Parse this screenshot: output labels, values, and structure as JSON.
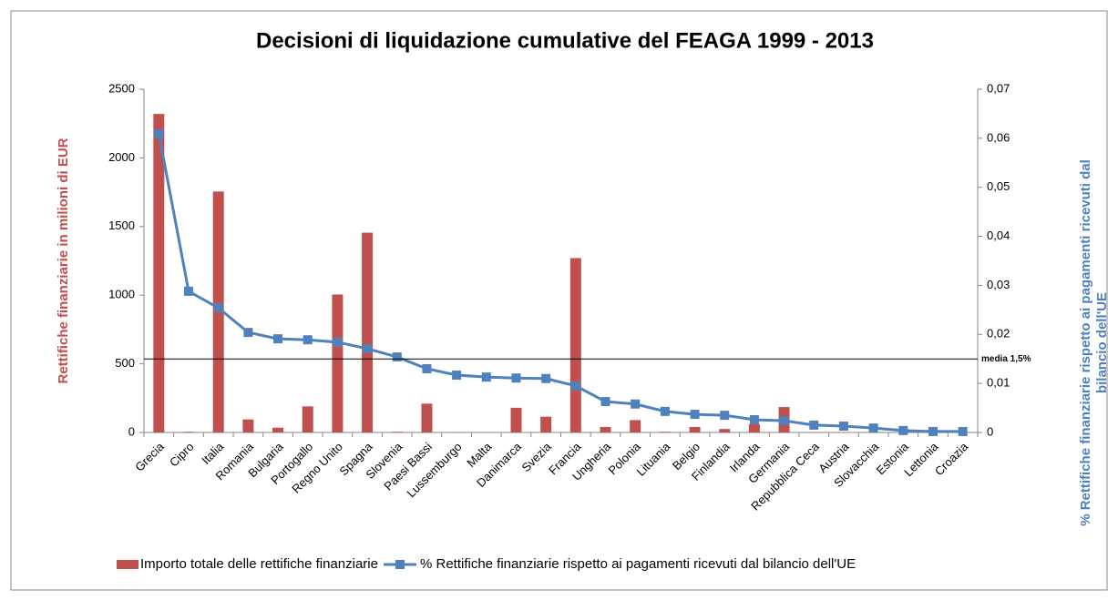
{
  "chart_data": {
    "type": "bar",
    "title": "Decisioni di liquidazione cumulative del FEAGA 1999 - 2013",
    "categories": [
      "Grecia",
      "Cipro",
      "Italia",
      "Romania",
      "Bulgaria",
      "Portogallo",
      "Regno Unito",
      "Spagna",
      "Slovenia",
      "Paesi Bassi",
      "Lussemburgo",
      "Malta",
      "Danimarca",
      "Svezia",
      "Francia",
      "Ungheria",
      "Polonia",
      "Lituania",
      "Belgio",
      "Finlandia",
      "Irlanda",
      "Germania",
      "Repubblica Ceca",
      "Austria",
      "Slovacchia",
      "Estonia",
      "Lettonia",
      "Croazia"
    ],
    "series": [
      {
        "name": "Importo totale delle rettifiche finanziarie",
        "type": "bar",
        "color": "#c0504d",
        "values": [
          2320,
          5,
          1755,
          95,
          35,
          190,
          1005,
          1455,
          5,
          210,
          2,
          0,
          180,
          115,
          1270,
          40,
          90,
          5,
          40,
          25,
          60,
          185,
          3,
          2,
          2,
          1,
          0,
          0
        ]
      },
      {
        "name": "% Rettifiche finanziarie rispetto ai pagamenti ricevuti dal bilancio dell'UE",
        "type": "line",
        "axis": "y2",
        "color": "#4f81bd",
        "values": [
          0.0609,
          0.0288,
          0.0254,
          0.0204,
          0.0191,
          0.0189,
          0.0184,
          0.0171,
          0.0154,
          0.013,
          0.0117,
          0.0113,
          0.0111,
          0.011,
          0.0095,
          0.0063,
          0.0058,
          0.0043,
          0.0037,
          0.0035,
          0.0026,
          0.0024,
          0.0015,
          0.0013,
          0.0009,
          0.0004,
          0.0002,
          0.0002
        ]
      }
    ],
    "ylabel": "Rettifiche finanziarie in milioni di EUR",
    "y2label": [
      "% Rettifiche finanziarie rispetto ai pagamenti ricevuti dal",
      "bilancio dell'UE"
    ],
    "ylim": [
      0,
      2500
    ],
    "yticks": [
      0,
      500,
      1000,
      1500,
      2000,
      2500
    ],
    "y2lim": [
      0,
      0.07
    ],
    "y2ticks": [
      0,
      {
        "value": 0.01,
        "label": "0,01"
      },
      {
        "value": 0.02,
        "label": "0,02"
      },
      {
        "value": 0.03,
        "label": "0,03"
      },
      {
        "value": 0.04,
        "label": "0,04"
      },
      {
        "value": 0.05,
        "label": "0,05"
      },
      {
        "value": 0.06,
        "label": "0,06"
      },
      {
        "value": 0.07,
        "label": "0,07"
      }
    ],
    "reference_line": {
      "value": 0.015,
      "label": "media 1,5%",
      "axis": "y2"
    },
    "legend": "bottom",
    "grid": false
  }
}
